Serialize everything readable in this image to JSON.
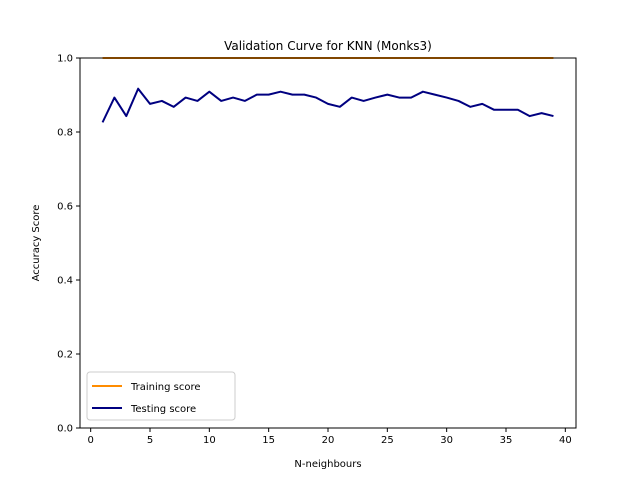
{
  "chart_data": {
    "type": "line",
    "title": "Validation Curve for KNN (Monks3)",
    "xlabel": "N-neighbours",
    "ylabel": "Accuracy Score",
    "xlim": [
      -0.9,
      40.9
    ],
    "ylim": [
      0.0,
      1.0
    ],
    "xticks": [
      0,
      5,
      10,
      15,
      20,
      25,
      30,
      35,
      40
    ],
    "xtick_labels": [
      "0",
      "5",
      "10",
      "15",
      "20",
      "25",
      "30",
      "35",
      "40"
    ],
    "yticks": [
      0.0,
      0.2,
      0.4,
      0.6,
      0.8,
      1.0
    ],
    "ytick_labels": [
      "0.0",
      "0.2",
      "0.4",
      "0.6",
      "0.8",
      "1.0"
    ],
    "grid": false,
    "legend_position": "lower-left",
    "x": [
      1,
      2,
      3,
      4,
      5,
      6,
      7,
      8,
      9,
      10,
      11,
      12,
      13,
      14,
      15,
      16,
      17,
      18,
      19,
      20,
      21,
      22,
      23,
      24,
      25,
      26,
      27,
      28,
      29,
      30,
      31,
      32,
      33,
      34,
      35,
      36,
      37,
      38,
      39
    ],
    "series": [
      {
        "name": "Training score",
        "color": "#ff8c00",
        "values": [
          1,
          1,
          1,
          1,
          1,
          1,
          1,
          1,
          1,
          1,
          1,
          1,
          1,
          1,
          1,
          1,
          1,
          1,
          1,
          1,
          1,
          1,
          1,
          1,
          1,
          1,
          1,
          1,
          1,
          1,
          1,
          1,
          1,
          1,
          1,
          1,
          1,
          1,
          1
        ]
      },
      {
        "name": "Testing score",
        "color": "#000080",
        "values": [
          0.826,
          0.893,
          0.843,
          0.917,
          0.876,
          0.884,
          0.868,
          0.893,
          0.884,
          0.909,
          0.884,
          0.893,
          0.884,
          0.901,
          0.901,
          0.909,
          0.901,
          0.901,
          0.893,
          0.876,
          0.868,
          0.893,
          0.884,
          0.893,
          0.901,
          0.893,
          0.893,
          0.909,
          0.901,
          0.893,
          0.884,
          0.868,
          0.876,
          0.86,
          0.86,
          0.86,
          0.843,
          0.851,
          0.843
        ]
      }
    ]
  }
}
